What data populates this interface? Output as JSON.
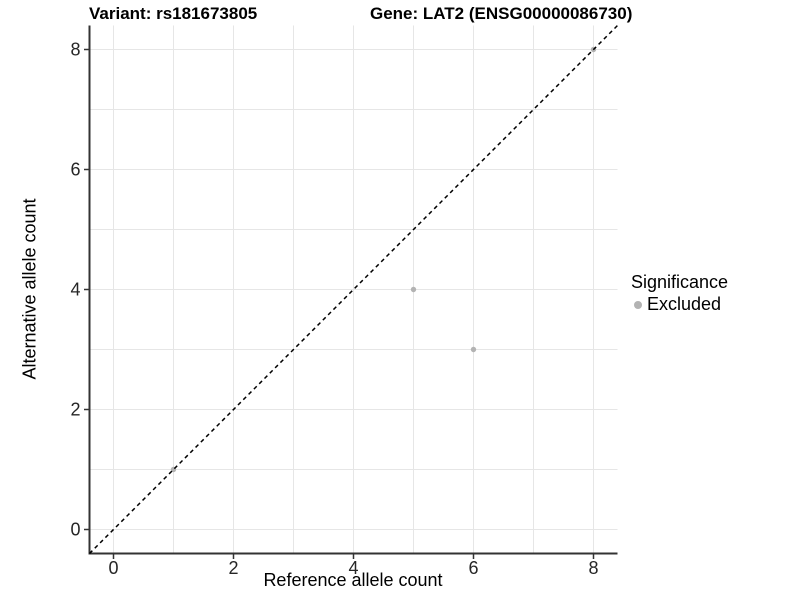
{
  "chart_data": {
    "type": "scatter",
    "title_left": "Variant: rs181673805",
    "title_right": "Gene: LAT2 (ENSG00000086730)",
    "xlabel": "Reference allele count",
    "ylabel": "Alternative allele count",
    "xlim": [
      -0.4,
      8.4
    ],
    "ylim": [
      -0.4,
      8.4
    ],
    "xticks": [
      0,
      2,
      4,
      6,
      8
    ],
    "yticks": [
      0,
      2,
      4,
      6,
      8
    ],
    "grid": true,
    "grid_values": [
      0,
      1,
      2,
      3,
      4,
      5,
      6,
      7,
      8
    ],
    "series": [
      {
        "name": "Excluded",
        "color": "#b3b3b3",
        "points": [
          {
            "x": 1,
            "y": 1
          },
          {
            "x": 5,
            "y": 4
          },
          {
            "x": 6,
            "y": 3
          },
          {
            "x": 8,
            "y": 8
          }
        ]
      }
    ],
    "reference_line": {
      "type": "identity",
      "equation": "y = x",
      "style": "dashed",
      "color": "#000000"
    },
    "legend": {
      "title": "Significance",
      "position": "right",
      "items": [
        {
          "label": "Excluded",
          "color": "#b3b3b3"
        }
      ]
    },
    "style": {
      "grid_color": "#e6e6e6",
      "axis_color": "#333333",
      "tick_color": "#333333",
      "tick_label_color": "#262626",
      "point_radius": 2.7,
      "legend_marker_color": "#b3b3b3"
    }
  }
}
